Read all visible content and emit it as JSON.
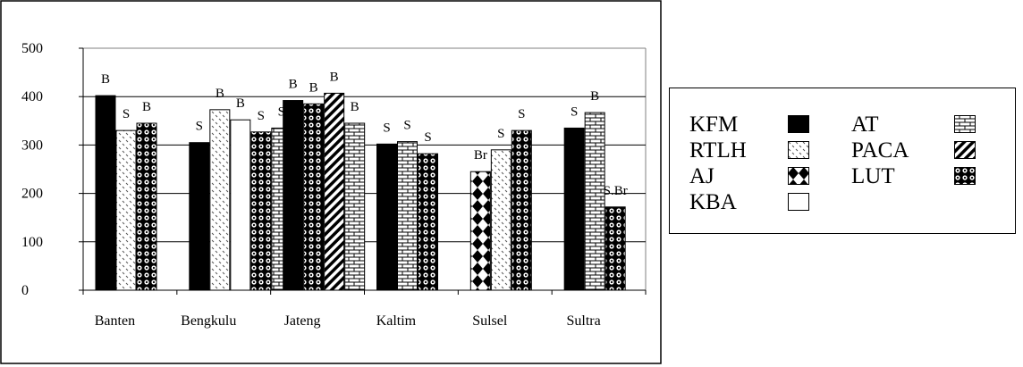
{
  "chart_data": {
    "type": "bar",
    "categories": [
      "Banten",
      "Bengkulu",
      "Jateng",
      "Kaltim",
      "Sulsel",
      "Sultra"
    ],
    "ylim": [
      0,
      500
    ],
    "yticks": [
      0,
      100,
      200,
      300,
      400,
      500
    ],
    "grid": true,
    "legend_position": "right",
    "series": [
      {
        "name": "KFM",
        "pattern": "solid-black"
      },
      {
        "name": "RTLH",
        "pattern": "dots-light"
      },
      {
        "name": "AJ",
        "pattern": "diamond"
      },
      {
        "name": "KBA",
        "pattern": "white"
      },
      {
        "name": "AT",
        "pattern": "brick"
      },
      {
        "name": "PACA",
        "pattern": "diagonal-stripes"
      },
      {
        "name": "LUT",
        "pattern": "circles"
      }
    ],
    "groups": [
      {
        "category": "Banten",
        "bars": [
          {
            "series": "KFM",
            "value": 402,
            "label": "B"
          },
          {
            "series": "RTLH",
            "value": 330,
            "label": "S"
          },
          {
            "series": "LUT",
            "value": 345,
            "label": "B"
          }
        ]
      },
      {
        "category": "Bengkulu",
        "bars": [
          {
            "series": "KFM",
            "value": 305,
            "label": "S"
          },
          {
            "series": "RTLH",
            "value": 373,
            "label": "B"
          },
          {
            "series": "KBA",
            "value": 352,
            "label": "B"
          },
          {
            "series": "LUT",
            "value": 327,
            "label": "S"
          },
          {
            "series": "AT",
            "value": 335,
            "label": "S"
          }
        ]
      },
      {
        "category": "Jateng",
        "bars": [
          {
            "series": "KFM",
            "value": 392,
            "label": "B"
          },
          {
            "series": "LUT",
            "value": 385,
            "label": "B"
          },
          {
            "series": "PACA",
            "value": 407,
            "label": "B"
          },
          {
            "series": "AT",
            "value": 345,
            "label": "B"
          }
        ]
      },
      {
        "category": "Kaltim",
        "bars": [
          {
            "series": "KFM",
            "value": 302,
            "label": "S"
          },
          {
            "series": "AT",
            "value": 307,
            "label": "S"
          },
          {
            "series": "LUT",
            "value": 282,
            "label": "S"
          }
        ]
      },
      {
        "category": "Sulsel",
        "bars": [
          {
            "series": "AJ",
            "value": 245,
            "label": "Br"
          },
          {
            "series": "RTLH",
            "value": 290,
            "label": "S"
          },
          {
            "series": "LUT",
            "value": 330,
            "label": "S"
          }
        ]
      },
      {
        "category": "Sultra",
        "bars": [
          {
            "series": "KFM",
            "value": 335,
            "label": "S"
          },
          {
            "series": "AT",
            "value": 367,
            "label": "B"
          },
          {
            "series": "LUT",
            "value": 172,
            "label": "S.Br"
          }
        ]
      }
    ]
  },
  "legend": {
    "items": [
      {
        "label": "KFM",
        "pattern": "solid-black"
      },
      {
        "label": "RTLH",
        "pattern": "dots-light"
      },
      {
        "label": "AJ",
        "pattern": "diamond"
      },
      {
        "label": "KBA",
        "pattern": "white"
      },
      {
        "label": "AT",
        "pattern": "brick"
      },
      {
        "label": "PACA",
        "pattern": "diagonal-stripes"
      },
      {
        "label": "LUT",
        "pattern": "circles"
      }
    ]
  }
}
